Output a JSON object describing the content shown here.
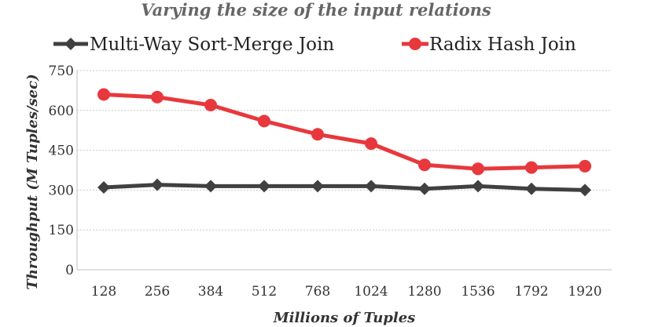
{
  "chart_data": {
    "type": "line",
    "title": "Varying the size of the input relations",
    "xlabel": "Millions of Tuples",
    "ylabel": "Throughput (M Tuples/sec)",
    "categories": [
      "128",
      "256",
      "384",
      "512",
      "768",
      "1024",
      "1280",
      "1536",
      "1792",
      "1920"
    ],
    "ylim": [
      0,
      750
    ],
    "yticks": [
      "0",
      "150",
      "300",
      "450",
      "600",
      "750"
    ],
    "grid": true,
    "legend_position": "top",
    "series": [
      {
        "name": "Multi-Way Sort-Merge Join",
        "color": "#404040",
        "marker": "diamond",
        "values": [
          310,
          320,
          315,
          315,
          315,
          315,
          305,
          315,
          305,
          300
        ]
      },
      {
        "name": "Radix Hash Join",
        "color": "#e8383d",
        "marker": "circle",
        "values": [
          660,
          650,
          620,
          560,
          510,
          475,
          395,
          380,
          385,
          390
        ]
      }
    ]
  }
}
